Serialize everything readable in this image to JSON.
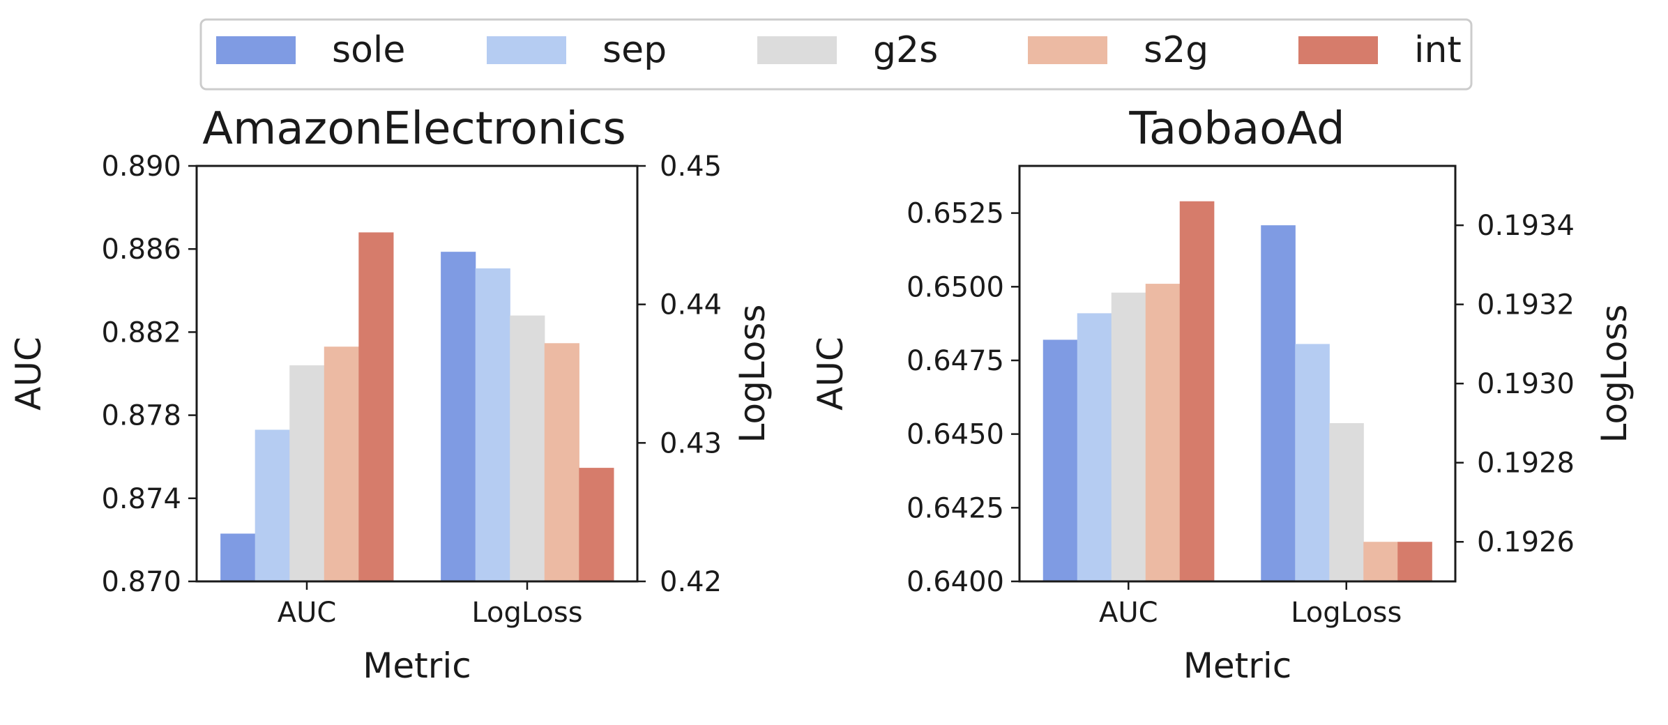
{
  "legend": {
    "items": [
      {
        "name": "sole",
        "color": "#7f9be3"
      },
      {
        "name": "sep",
        "color": "#b5ccf2"
      },
      {
        "name": "g2s",
        "color": "#dcdcdc"
      },
      {
        "name": "s2g",
        "color": "#ecbaa3"
      },
      {
        "name": "int",
        "color": "#d67c6b"
      }
    ]
  },
  "chart_data": [
    {
      "type": "bar",
      "title": "AmazonElectronics",
      "xlabel": "Metric",
      "ylabel": "AUC",
      "ylabel_right": "LogLoss",
      "categories": [
        "AUC",
        "LogLoss"
      ],
      "ylim": [
        0.87,
        0.89
      ],
      "ylim_right": [
        0.42,
        0.45
      ],
      "yticks": [
        "0.870",
        "0.874",
        "0.878",
        "0.882",
        "0.886",
        "0.890"
      ],
      "yticks_right": [
        "0.42",
        "0.43",
        "0.44",
        "0.45"
      ],
      "series": [
        {
          "name": "sole",
          "auc": 0.8723,
          "logloss": 0.4438
        },
        {
          "name": "sep",
          "auc": 0.8773,
          "logloss": 0.4426
        },
        {
          "name": "g2s",
          "auc": 0.8804,
          "logloss": 0.4392
        },
        {
          "name": "s2g",
          "auc": 0.8813,
          "logloss": 0.4372
        },
        {
          "name": "int",
          "auc": 0.8868,
          "logloss": 0.4282
        }
      ]
    },
    {
      "type": "bar",
      "title": "TaobaoAd",
      "xlabel": "Metric",
      "ylabel": "AUC",
      "ylabel_right": "LogLoss",
      "categories": [
        "AUC",
        "LogLoss"
      ],
      "ylim": [
        0.64,
        0.6541
      ],
      "ylim_right": [
        0.1925,
        0.19355
      ],
      "yticks": [
        "0.6400",
        "0.6425",
        "0.6450",
        "0.6475",
        "0.6500",
        "0.6525"
      ],
      "yticks_right": [
        "0.1926",
        "0.1928",
        "0.1930",
        "0.1932",
        "0.1934"
      ],
      "series": [
        {
          "name": "sole",
          "auc": 0.6482,
          "logloss": 0.1934
        },
        {
          "name": "sep",
          "auc": 0.6491,
          "logloss": 0.1931
        },
        {
          "name": "g2s",
          "auc": 0.6498,
          "logloss": 0.1929
        },
        {
          "name": "s2g",
          "auc": 0.6501,
          "logloss": 0.1926
        },
        {
          "name": "int",
          "auc": 0.6529,
          "logloss": 0.1926
        }
      ]
    }
  ]
}
